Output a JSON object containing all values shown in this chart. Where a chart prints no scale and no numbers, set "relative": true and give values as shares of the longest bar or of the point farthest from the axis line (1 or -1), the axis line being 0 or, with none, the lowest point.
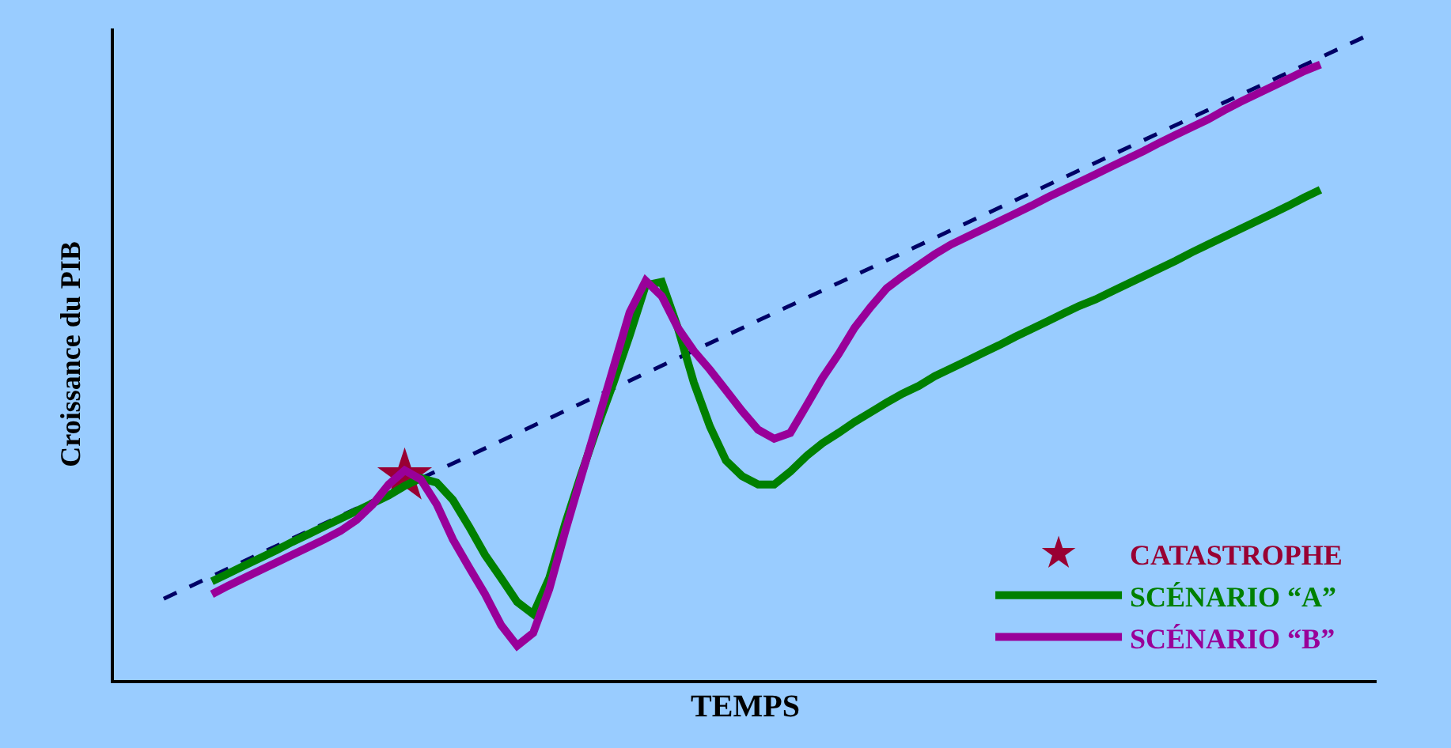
{
  "chart_data": {
    "type": "line",
    "relative": true,
    "xlabel": "TEMPS",
    "ylabel": "Croissance du PIB",
    "legend": "bottom right",
    "grid": false,
    "tick_labels": false,
    "categories": [
      null,
      null,
      null,
      null,
      null,
      null,
      null,
      null,
      null,
      null,
      null,
      null,
      null,
      null,
      null,
      null,
      null,
      null,
      null,
      null,
      null,
      null,
      null,
      null,
      null,
      null,
      null,
      null,
      null,
      null,
      null,
      null,
      null,
      null,
      null,
      null,
      null,
      null,
      null,
      null,
      null,
      null,
      null,
      null,
      null,
      null,
      null,
      null,
      null,
      null,
      null,
      null,
      null,
      null,
      null,
      null,
      null,
      null,
      null,
      null,
      null,
      null,
      null,
      null,
      null,
      null,
      null,
      null,
      null,
      null,
      null,
      null,
      null,
      null,
      null,
      null
    ],
    "series": [
      {
        "name": "CATASTROPHE",
        "color": "#990033",
        "marker": "star",
        "values": [
          null,
          null,
          null,
          null,
          null,
          null,
          null,
          null,
          null,
          null,
          null,
          null,
          null,
          null,
          null,
          0.316,
          null,
          null,
          null,
          null,
          null,
          null,
          null,
          null,
          null,
          null,
          null,
          null,
          null,
          null,
          null,
          null,
          null,
          null,
          null,
          null,
          null,
          null,
          null,
          null,
          null,
          null,
          null,
          null,
          null,
          null,
          null,
          null,
          null,
          null,
          null,
          null,
          null,
          null,
          null,
          null,
          null,
          null,
          null,
          null,
          null,
          null,
          null,
          null,
          null,
          null,
          null,
          null,
          null,
          null,
          null,
          null,
          null,
          null,
          null,
          null
        ]
      },
      {
        "color": "#000066",
        "line_style": "dashed",
        "values": [
          0.126,
          null,
          null,
          null,
          null,
          null,
          null,
          null,
          null,
          null,
          null,
          null,
          null,
          null,
          null,
          null,
          null,
          null,
          null,
          null,
          null,
          null,
          null,
          null,
          null,
          null,
          null,
          null,
          null,
          null,
          null,
          null,
          null,
          null,
          null,
          null,
          null,
          null,
          null,
          null,
          null,
          null,
          null,
          null,
          null,
          null,
          null,
          null,
          null,
          null,
          null,
          null,
          null,
          null,
          null,
          null,
          null,
          null,
          null,
          null,
          null,
          null,
          null,
          null,
          null,
          null,
          null,
          null,
          null,
          null,
          null,
          null,
          null,
          null,
          null,
          1.0
        ]
      },
      {
        "name": "SCÉNARIO “A”",
        "color": "#008000",
        "line_style": "solid",
        "values": [
          null,
          null,
          null,
          0.153,
          0.165,
          0.177,
          0.189,
          0.201,
          0.214,
          0.226,
          0.238,
          0.25,
          0.262,
          0.274,
          0.286,
          0.301,
          0.313,
          0.306,
          0.279,
          0.238,
          0.194,
          0.158,
          0.121,
          0.102,
          0.158,
          0.243,
          0.32,
          0.393,
          0.461,
          0.534,
          0.612,
          0.617,
          0.546,
          0.461,
          0.393,
          0.34,
          0.316,
          0.303,
          0.303,
          0.323,
          0.347,
          0.367,
          0.383,
          0.4,
          0.415,
          0.43,
          0.444,
          0.456,
          0.471,
          0.483,
          0.495,
          0.507,
          0.519,
          0.532,
          0.544,
          0.556,
          0.568,
          0.58,
          0.59,
          0.602,
          0.614,
          0.626,
          0.638,
          0.65,
          0.663,
          0.675,
          0.687,
          0.699,
          0.711,
          0.723,
          0.735,
          0.748,
          0.76,
          null,
          null,
          null
        ]
      },
      {
        "name": "SCÉNARIO “B”",
        "color": "#990099",
        "line_style": "solid",
        "values": [
          null,
          null,
          null,
          0.133,
          0.146,
          0.158,
          0.17,
          0.182,
          0.194,
          0.206,
          0.218,
          0.231,
          0.248,
          0.272,
          0.303,
          0.325,
          0.311,
          0.272,
          0.218,
          0.175,
          0.133,
          0.085,
          0.053,
          0.073,
          0.141,
          0.231,
          0.316,
          0.4,
          0.485,
          0.57,
          0.619,
          0.595,
          0.546,
          0.51,
          0.481,
          0.449,
          0.417,
          0.388,
          0.374,
          0.383,
          0.425,
          0.468,
          0.505,
          0.546,
          0.578,
          0.607,
          0.626,
          0.643,
          0.66,
          0.675,
          0.687,
          0.699,
          0.711,
          0.723,
          0.735,
          0.748,
          0.76,
          0.772,
          0.784,
          0.796,
          0.808,
          0.82,
          0.833,
          0.845,
          0.857,
          0.869,
          0.883,
          0.896,
          0.908,
          0.92,
          0.932,
          0.944,
          0.954,
          null,
          null,
          null
        ]
      }
    ]
  }
}
